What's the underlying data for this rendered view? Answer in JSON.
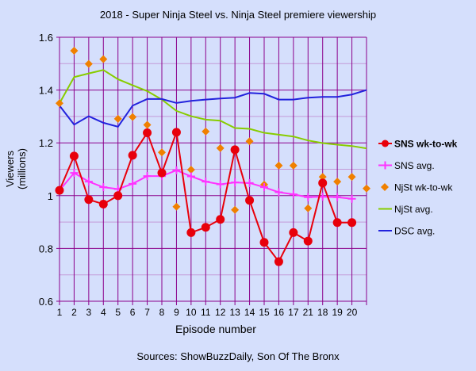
{
  "chart_data": {
    "type": "line",
    "title": "2018 - Super Ninja Steel vs. Ninja Steel premiere viewership",
    "xlabel": "Episode number",
    "ylabel": "Viewers (millions)",
    "ylabel_lines": [
      "Viewers",
      "(millions)"
    ],
    "source": "Sources: ShowBuzzDaily, Son Of The Bronx",
    "ylim": [
      0.6,
      1.6
    ],
    "yticks": [
      "0.6",
      "0.8",
      "1",
      "1.2",
      "1.4",
      "1.6"
    ],
    "ytick_values": [
      0.6,
      0.8,
      1.0,
      1.2,
      1.4,
      1.6
    ],
    "categories": [
      "1",
      "2",
      "3",
      "4",
      "5",
      "6",
      "7",
      "8",
      "9",
      "10",
      "11",
      "12",
      "13",
      "14",
      "15",
      "16",
      "17",
      "21",
      "18",
      "19",
      "20",
      ""
    ],
    "grid": true,
    "legend_position": "right",
    "series": [
      {
        "name": "SNS wk-to-wk",
        "color": "#e8000b",
        "style": "line-circle",
        "values": [
          1.02,
          1.15,
          0.985,
          0.968,
          1.0,
          1.153,
          1.238,
          1.086,
          1.24,
          0.86,
          0.88,
          0.91,
          1.174,
          0.982,
          0.823,
          0.75,
          0.86,
          0.828,
          1.048,
          0.898,
          0.898,
          null
        ]
      },
      {
        "name": "SNS avg.",
        "color": "#ff33ff",
        "style": "line-plus",
        "values": [
          1.02,
          1.086,
          1.053,
          1.032,
          1.025,
          1.045,
          1.074,
          1.074,
          1.096,
          1.073,
          1.053,
          1.043,
          1.05,
          1.048,
          1.032,
          1.013,
          1.005,
          0.994,
          0.996,
          0.994,
          0.988,
          null
        ]
      },
      {
        "name": "NjSt wk-to-wk",
        "color": "#f08000",
        "style": "diamond",
        "values": [
          1.35,
          1.549,
          1.499,
          1.517,
          1.291,
          1.298,
          1.268,
          1.164,
          0.958,
          1.098,
          1.243,
          1.18,
          0.946,
          1.206,
          1.042,
          1.114,
          1.114,
          0.952,
          1.071,
          1.053,
          1.071,
          1.027
        ]
      },
      {
        "name": "NjSt avg.",
        "color": "#88cc00",
        "style": "line",
        "values": [
          1.35,
          1.449,
          1.463,
          1.476,
          1.441,
          1.418,
          1.396,
          1.364,
          1.321,
          1.301,
          1.288,
          1.284,
          1.256,
          1.253,
          1.238,
          1.231,
          1.224,
          1.209,
          1.199,
          1.193,
          1.188,
          1.179
        ]
      },
      {
        "name": "DSC avg.",
        "color": "#2222dd",
        "style": "line",
        "values": [
          1.341,
          1.269,
          1.301,
          1.276,
          1.261,
          1.341,
          1.366,
          1.366,
          1.351,
          1.359,
          1.364,
          1.368,
          1.371,
          1.389,
          1.386,
          1.364,
          1.364,
          1.371,
          1.374,
          1.374,
          1.383,
          1.4
        ]
      }
    ]
  }
}
